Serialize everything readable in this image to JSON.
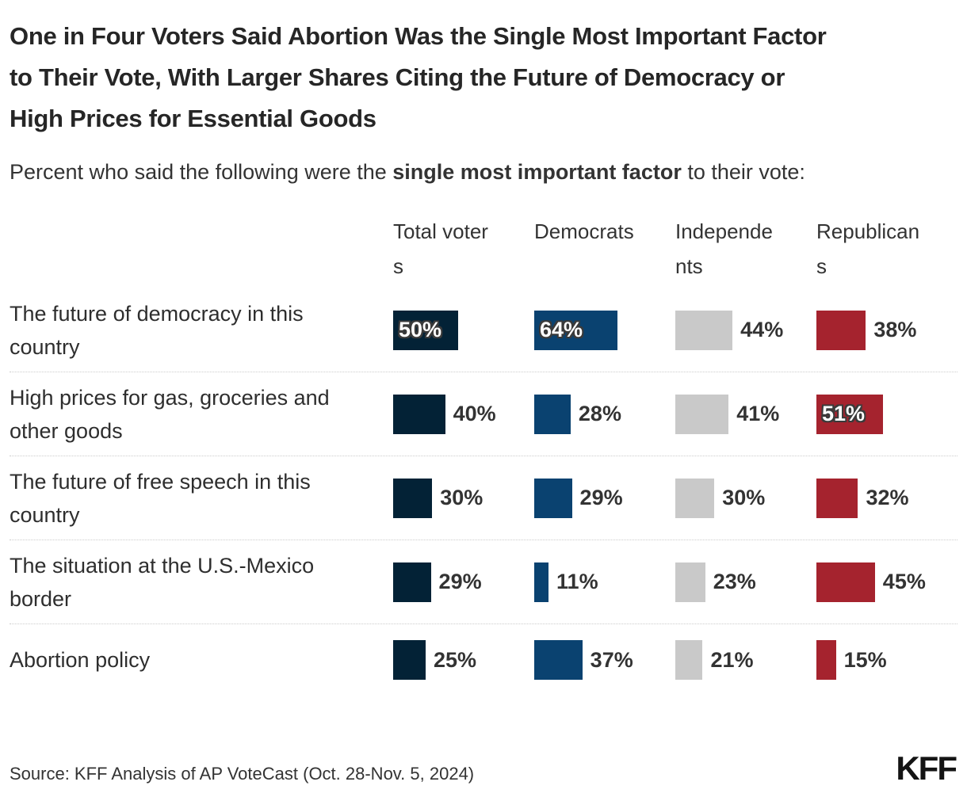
{
  "header": {
    "title": "One in Four Voters Said Abortion Was the Single Most Important Factor to Their Vote, With Larger Shares Citing the Future of Democracy or High Prices for Essential Goods",
    "subtitle": {
      "prefix": "Percent who said the following were the ",
      "bold": "single most important factor",
      "suffix": " to their vote:"
    }
  },
  "chart_data": {
    "type": "bar",
    "orientation": "horizontal",
    "value_suffix": "%",
    "label_inside_threshold": 50,
    "xlim": [
      0,
      100
    ],
    "grid": false,
    "legend_position": "column headers",
    "categories": [
      "The future of democracy in this country",
      "High prices for gas, groceries and other goods",
      "The future of free speech in this country",
      "The situation at the U.S.-Mexico border",
      "Abortion policy"
    ],
    "series": [
      {
        "name": "Total voters",
        "color": "#032236",
        "values": [
          50,
          40,
          30,
          29,
          25
        ]
      },
      {
        "name": "Democrats",
        "color": "#0A4270",
        "values": [
          64,
          28,
          29,
          11,
          37
        ]
      },
      {
        "name": "Independents",
        "color": "#C9C9C9",
        "values": [
          44,
          41,
          30,
          23,
          21
        ]
      },
      {
        "name": "Republicans",
        "color": "#A5232E",
        "values": [
          38,
          51,
          32,
          45,
          15
        ]
      }
    ]
  },
  "footer": {
    "source": "Source: KFF Analysis of AP VoteCast (Oct. 28-Nov. 5, 2024)",
    "logo": "KFF"
  },
  "colors": {
    "title_text": "#262626",
    "body_text": "#333333",
    "separator": "#cccccc",
    "inside_label_text": "#ffffff",
    "inside_label_halo": "#3a3a3a",
    "background": "#ffffff",
    "logo_text": "#141414"
  }
}
